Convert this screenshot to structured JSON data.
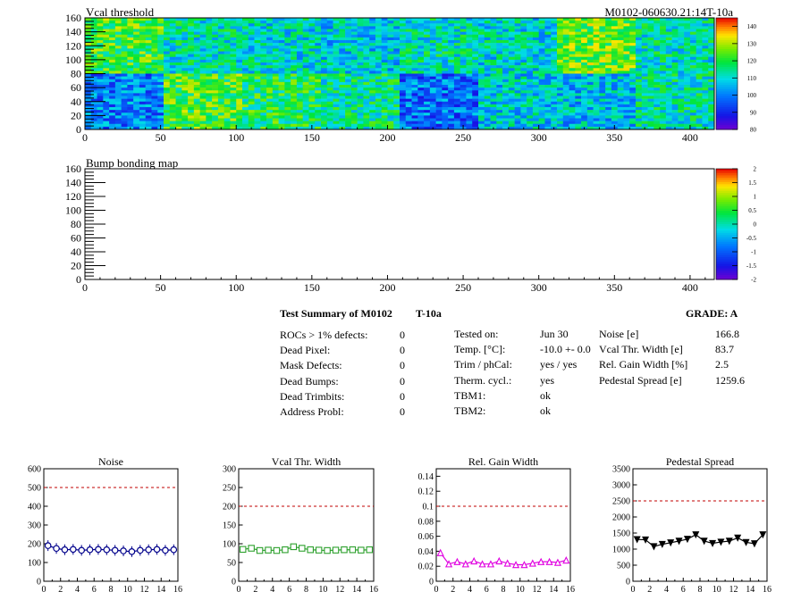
{
  "maps": [
    {
      "title": "Vcal threshold",
      "subtitle": "M0102-060630.21:14T-10a",
      "xticks": [
        "0",
        "50",
        "100",
        "150",
        "200",
        "250",
        "300",
        "350",
        "400"
      ],
      "xlim": [
        0,
        416
      ],
      "yticks": [
        "0",
        "20",
        "40",
        "60",
        "80",
        "100",
        "120",
        "140",
        "160"
      ],
      "ylim": [
        0,
        160
      ],
      "palette_labels": [
        "80",
        "90",
        "100",
        "110",
        "120",
        "130",
        "140"
      ],
      "zlim": [
        80,
        145
      ],
      "roc_mean_threshold": {
        "top_row": [
          122,
          112,
          110,
          108,
          112,
          110,
          125,
          112
        ],
        "bottom_row": [
          100,
          122,
          118,
          114,
          98,
          108,
          106,
          112
        ]
      }
    },
    {
      "title": "Bump bonding map",
      "xticks": [
        "0",
        "50",
        "100",
        "150",
        "200",
        "250",
        "300",
        "350",
        "400"
      ],
      "xlim": [
        0,
        416
      ],
      "yticks": [
        "0",
        "20",
        "40",
        "60",
        "80",
        "100",
        "120",
        "140",
        "160"
      ],
      "ylim": [
        0,
        160
      ],
      "palette_labels": [
        "-2",
        "-1.5",
        "-1",
        "-0.5",
        "0",
        "0.5",
        "1",
        "1.5",
        "2"
      ],
      "zlim": [
        -2,
        2
      ]
    }
  ],
  "summary": {
    "title": "Test Summary of M0102",
    "temp_label": "T-10a",
    "grade": "GRADE:  A",
    "col1": [
      {
        "label": "ROCs > 1% defects:",
        "value": "0"
      },
      {
        "label": "Dead Pixel:",
        "value": "0"
      },
      {
        "label": "Mask Defects:",
        "value": "0"
      },
      {
        "label": "Dead Bumps:",
        "value": "0"
      },
      {
        "label": "Dead Trimbits:",
        "value": "0"
      },
      {
        "label": "Address Probl:",
        "value": "0"
      }
    ],
    "col2": [
      {
        "label": "Tested on:",
        "value": "Jun 30"
      },
      {
        "label": "Temp. [°C]:",
        "value": "-10.0 +- 0.0"
      },
      {
        "label": "Trim / phCal:",
        "value": "yes / yes"
      },
      {
        "label": "Therm. cycl.:",
        "value": "yes"
      },
      {
        "label": "TBM1:",
        "value": "ok"
      },
      {
        "label": "TBM2:",
        "value": "ok"
      }
    ],
    "col3": [
      {
        "label": "Noise [e]",
        "value": "166.8"
      },
      {
        "label": "Vcal Thr. Width [e]",
        "value": "83.7"
      },
      {
        "label": "Rel. Gain Width [%]",
        "value": "2.5"
      },
      {
        "label": "Pedestal Spread [e]",
        "value": "1259.6"
      }
    ]
  },
  "chart_data": [
    {
      "type": "line",
      "title": "Noise",
      "x": [
        0,
        1,
        2,
        3,
        4,
        5,
        6,
        7,
        8,
        9,
        10,
        11,
        12,
        13,
        14,
        15
      ],
      "values": [
        190,
        175,
        168,
        170,
        165,
        168,
        170,
        168,
        165,
        162,
        158,
        165,
        168,
        170,
        165,
        168
      ],
      "ylim": [
        0,
        600
      ],
      "yticks": [
        "0",
        "100",
        "200",
        "300",
        "400",
        "500",
        "600"
      ],
      "xticks": [
        "0",
        "2",
        "4",
        "6",
        "8",
        "10",
        "12",
        "14",
        "16"
      ],
      "limit": 500,
      "color": "#00008b",
      "marker": "circle"
    },
    {
      "type": "line",
      "title": "Vcal Thr. Width",
      "x": [
        0,
        1,
        2,
        3,
        4,
        5,
        6,
        7,
        8,
        9,
        10,
        11,
        12,
        13,
        14,
        15
      ],
      "values": [
        85,
        88,
        82,
        83,
        82,
        84,
        92,
        88,
        84,
        83,
        82,
        83,
        84,
        84,
        83,
        84
      ],
      "ylim": [
        0,
        300
      ],
      "yticks": [
        "0",
        "50",
        "100",
        "150",
        "200",
        "250",
        "300"
      ],
      "xticks": [
        "0",
        "2",
        "4",
        "6",
        "8",
        "10",
        "12",
        "14",
        "16"
      ],
      "limit": 200,
      "color": "#2ca02c",
      "marker": "square"
    },
    {
      "type": "line",
      "title": "Rel. Gain Width",
      "x": [
        0,
        1,
        2,
        3,
        4,
        5,
        6,
        7,
        8,
        9,
        10,
        11,
        12,
        13,
        14,
        15
      ],
      "values": [
        0.038,
        0.023,
        0.026,
        0.023,
        0.027,
        0.023,
        0.023,
        0.027,
        0.024,
        0.022,
        0.022,
        0.024,
        0.026,
        0.026,
        0.025,
        0.028
      ],
      "ylim": [
        0,
        0.15
      ],
      "yticks": [
        "0",
        "0.02",
        "0.04",
        "0.06",
        "0.08",
        "0.1",
        "0.12",
        "0.14"
      ],
      "ytick_values": [
        0,
        0.02,
        0.04,
        0.06,
        0.08,
        0.1,
        0.12,
        0.14
      ],
      "xticks": [
        "0",
        "2",
        "4",
        "6",
        "8",
        "10",
        "12",
        "14",
        "16"
      ],
      "limit": 0.1,
      "color": "#e000e0",
      "marker": "triangle"
    },
    {
      "type": "line",
      "title": "Pedestal Spread",
      "x": [
        0,
        1,
        2,
        3,
        4,
        5,
        6,
        7,
        8,
        9,
        10,
        11,
        12,
        13,
        14,
        15
      ],
      "values": [
        1300,
        1290,
        1080,
        1150,
        1200,
        1250,
        1310,
        1450,
        1250,
        1180,
        1220,
        1250,
        1350,
        1210,
        1170,
        1450
      ],
      "ylim": [
        0,
        3500
      ],
      "yticks": [
        "0",
        "500",
        "1000",
        "1500",
        "2000",
        "2500",
        "3000",
        "3500"
      ],
      "xticks": [
        "0",
        "2",
        "4",
        "6",
        "8",
        "10",
        "12",
        "14",
        "16"
      ],
      "limit": 2500,
      "color": "#000000",
      "marker": "triangle-down"
    }
  ]
}
